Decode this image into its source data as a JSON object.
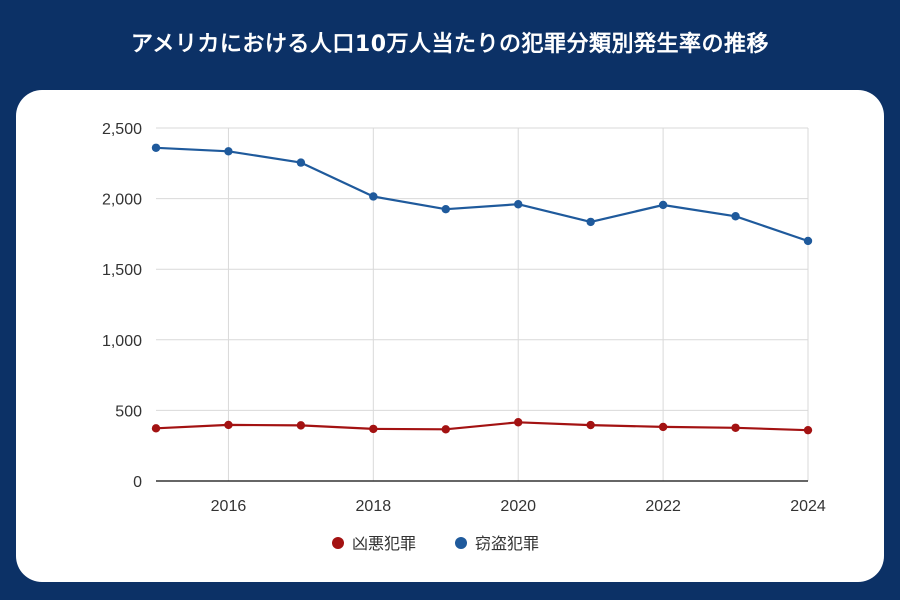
{
  "title": "アメリカにおける人口10万人当たりの犯罪分類別発生率の推移",
  "colors": {
    "background": "#0c3166",
    "card": "#ffffff",
    "grid": "#d9d9d9",
    "axis": "#333333"
  },
  "chart_data": {
    "type": "line",
    "x": [
      2015,
      2016,
      2017,
      2018,
      2019,
      2020,
      2021,
      2022,
      2023,
      2024
    ],
    "xticks": [
      "2016",
      "2018",
      "2020",
      "2022",
      "2024"
    ],
    "xlim": [
      2015,
      2024
    ],
    "ylim": [
      0,
      2500
    ],
    "yticks": [
      "0",
      "500",
      "1,000",
      "1,500",
      "2,000",
      "2,500"
    ],
    "grid": true,
    "legend_position": "bottom",
    "series": [
      {
        "name": "凶悪犯罪",
        "color": "#a31212",
        "values": [
          373,
          397,
          394,
          369,
          366,
          416,
          396,
          383,
          377,
          360
        ]
      },
      {
        "name": "窃盗犯罪",
        "color": "#1f5a9c",
        "values": [
          2360,
          2335,
          2255,
          2015,
          1925,
          1960,
          1835,
          1955,
          1875,
          1700
        ]
      }
    ]
  }
}
